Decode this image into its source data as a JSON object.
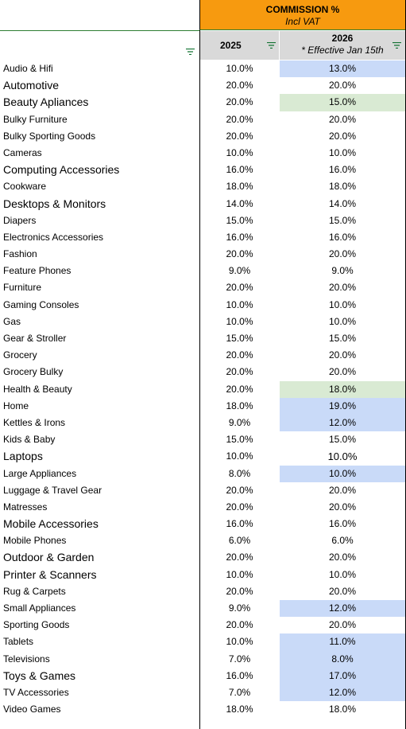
{
  "header": {
    "title": "COMMISSION %",
    "subtitle": "Incl VAT",
    "col_2025": "2025",
    "col_2026": "2026",
    "col_2026_note": "* Effective Jan 15th",
    "filter_icon": "filter-icon"
  },
  "colors": {
    "orange": "#f79a0f",
    "blue_highlight": "#c9daf8",
    "green_highlight": "#d9ead3",
    "header_gray": "#d9d9d9"
  },
  "rows": [
    {
      "category": "Audio & Hifi",
      "v2025": "10.0%",
      "v2026": "13.0%",
      "hl": "blue"
    },
    {
      "category": "Automotive",
      "v2025": "20.0%",
      "v2026": "20.0%",
      "hl": "",
      "big": true
    },
    {
      "category": "Beauty Apliances",
      "v2025": "20.0%",
      "v2026": "15.0%",
      "hl": "green",
      "big": true
    },
    {
      "category": "Bulky Furniture",
      "v2025": "20.0%",
      "v2026": "20.0%",
      "hl": ""
    },
    {
      "category": "Bulky Sporting Goods",
      "v2025": "20.0%",
      "v2026": "20.0%",
      "hl": ""
    },
    {
      "category": "Cameras",
      "v2025": "10.0%",
      "v2026": "10.0%",
      "hl": ""
    },
    {
      "category": "Computing Accessories",
      "v2025": "16.0%",
      "v2026": "16.0%",
      "hl": "",
      "big": true
    },
    {
      "category": "Cookware",
      "v2025": "18.0%",
      "v2026": "18.0%",
      "hl": ""
    },
    {
      "category": "Desktops & Monitors",
      "v2025": "14.0%",
      "v2026": "14.0%",
      "hl": "",
      "big": true
    },
    {
      "category": "Diapers",
      "v2025": "15.0%",
      "v2026": "15.0%",
      "hl": ""
    },
    {
      "category": "Electronics Accessories",
      "v2025": "16.0%",
      "v2026": "16.0%",
      "hl": ""
    },
    {
      "category": "Fashion",
      "v2025": "20.0%",
      "v2026": "20.0%",
      "hl": ""
    },
    {
      "category": "Feature Phones",
      "v2025": "9.0%",
      "v2026": "9.0%",
      "hl": ""
    },
    {
      "category": "Furniture",
      "v2025": "20.0%",
      "v2026": "20.0%",
      "hl": ""
    },
    {
      "category": "Gaming Consoles",
      "v2025": "10.0%",
      "v2026": "10.0%",
      "hl": ""
    },
    {
      "category": "Gas",
      "v2025": "10.0%",
      "v2026": "10.0%",
      "hl": ""
    },
    {
      "category": "Gear & Stroller",
      "v2025": "15.0%",
      "v2026": "15.0%",
      "hl": ""
    },
    {
      "category": "Grocery",
      "v2025": "20.0%",
      "v2026": "20.0%",
      "hl": ""
    },
    {
      "category": "Grocery Bulky",
      "v2025": "20.0%",
      "v2026": "20.0%",
      "hl": ""
    },
    {
      "category": "Health & Beauty",
      "v2025": "20.0%",
      "v2026": "18.0%",
      "hl": "green"
    },
    {
      "category": "Home",
      "v2025": "18.0%",
      "v2026": "19.0%",
      "hl": "blue"
    },
    {
      "category": "Kettles & Irons",
      "v2025": "9.0%",
      "v2026": "12.0%",
      "hl": "blue"
    },
    {
      "category": "Kids & Baby",
      "v2025": "15.0%",
      "v2026": "15.0%",
      "hl": ""
    },
    {
      "category": "Laptops",
      "v2025": "10.0%",
      "v2026": "10.0%",
      "hl": "",
      "big": true
    },
    {
      "category": "Large Appliances",
      "v2025": "8.0%",
      "v2026": "10.0%",
      "hl": "blue"
    },
    {
      "category": "Luggage & Travel Gear",
      "v2025": "20.0%",
      "v2026": "20.0%",
      "hl": ""
    },
    {
      "category": "Matresses",
      "v2025": "20.0%",
      "v2026": "20.0%",
      "hl": ""
    },
    {
      "category": "Mobile Accessories",
      "v2025": "16.0%",
      "v2026": "16.0%",
      "hl": "",
      "big": true
    },
    {
      "category": "Mobile Phones",
      "v2025": "6.0%",
      "v2026": "6.0%",
      "hl": ""
    },
    {
      "category": "Outdoor & Garden",
      "v2025": "20.0%",
      "v2026": "20.0%",
      "hl": "",
      "big": true
    },
    {
      "category": "Printer & Scanners",
      "v2025": "10.0%",
      "v2026": "10.0%",
      "hl": "",
      "big": true
    },
    {
      "category": "Rug & Carpets",
      "v2025": "20.0%",
      "v2026": "20.0%",
      "hl": ""
    },
    {
      "category": "Small Appliances",
      "v2025": "9.0%",
      "v2026": "12.0%",
      "hl": "blue"
    },
    {
      "category": "Sporting Goods",
      "v2025": "20.0%",
      "v2026": "20.0%",
      "hl": ""
    },
    {
      "category": "Tablets",
      "v2025": "10.0%",
      "v2026": "11.0%",
      "hl": "blue"
    },
    {
      "category": "Televisions",
      "v2025": "7.0%",
      "v2026": "8.0%",
      "hl": "blue"
    },
    {
      "category": "Toys & Games",
      "v2025": "16.0%",
      "v2026": "17.0%",
      "hl": "blue",
      "big": true
    },
    {
      "category": "TV Accessories",
      "v2025": "7.0%",
      "v2026": "12.0%",
      "hl": "blue"
    },
    {
      "category": "Video Games",
      "v2025": "18.0%",
      "v2026": "18.0%",
      "hl": ""
    }
  ]
}
